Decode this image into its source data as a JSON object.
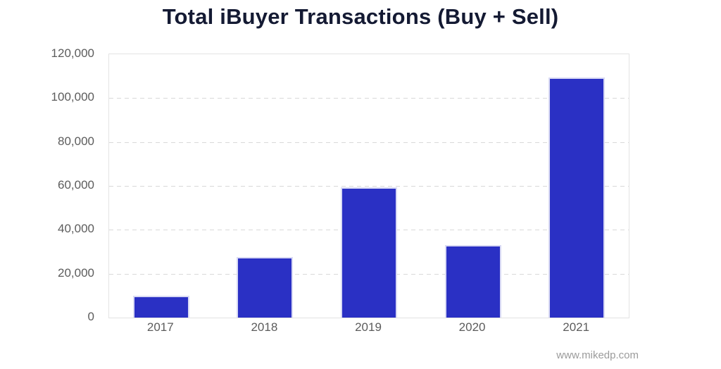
{
  "title": "Total iBuyer Transactions (Buy + Sell)",
  "watermark": "www.mikedp.com",
  "colors": {
    "bar": "#2a30c4",
    "bar_border": "#d9daf4",
    "title": "#141a33",
    "axis_text": "#5c5c5c",
    "gridline": "#d9d9d9",
    "frame": "#e3e3e3",
    "watermark": "#9b9b9b",
    "background": "#ffffff"
  },
  "chart_data": {
    "type": "bar",
    "title": "Total iBuyer Transactions (Buy + Sell)",
    "categories": [
      "2017",
      "2018",
      "2019",
      "2020",
      "2021"
    ],
    "values": [
      10000,
      27500,
      59500,
      33000,
      109500
    ],
    "xlabel": "",
    "ylabel": "",
    "ylim": [
      0,
      120000
    ],
    "ytick_interval": 20000,
    "ytick_labels": [
      "0",
      "20,000",
      "40,000",
      "60,000",
      "80,000",
      "100,000",
      "120,000"
    ],
    "grid": "horizontal-dashed",
    "legend": "none",
    "bar_color": "#2a30c4",
    "annotation": "www.mikedp.com"
  }
}
